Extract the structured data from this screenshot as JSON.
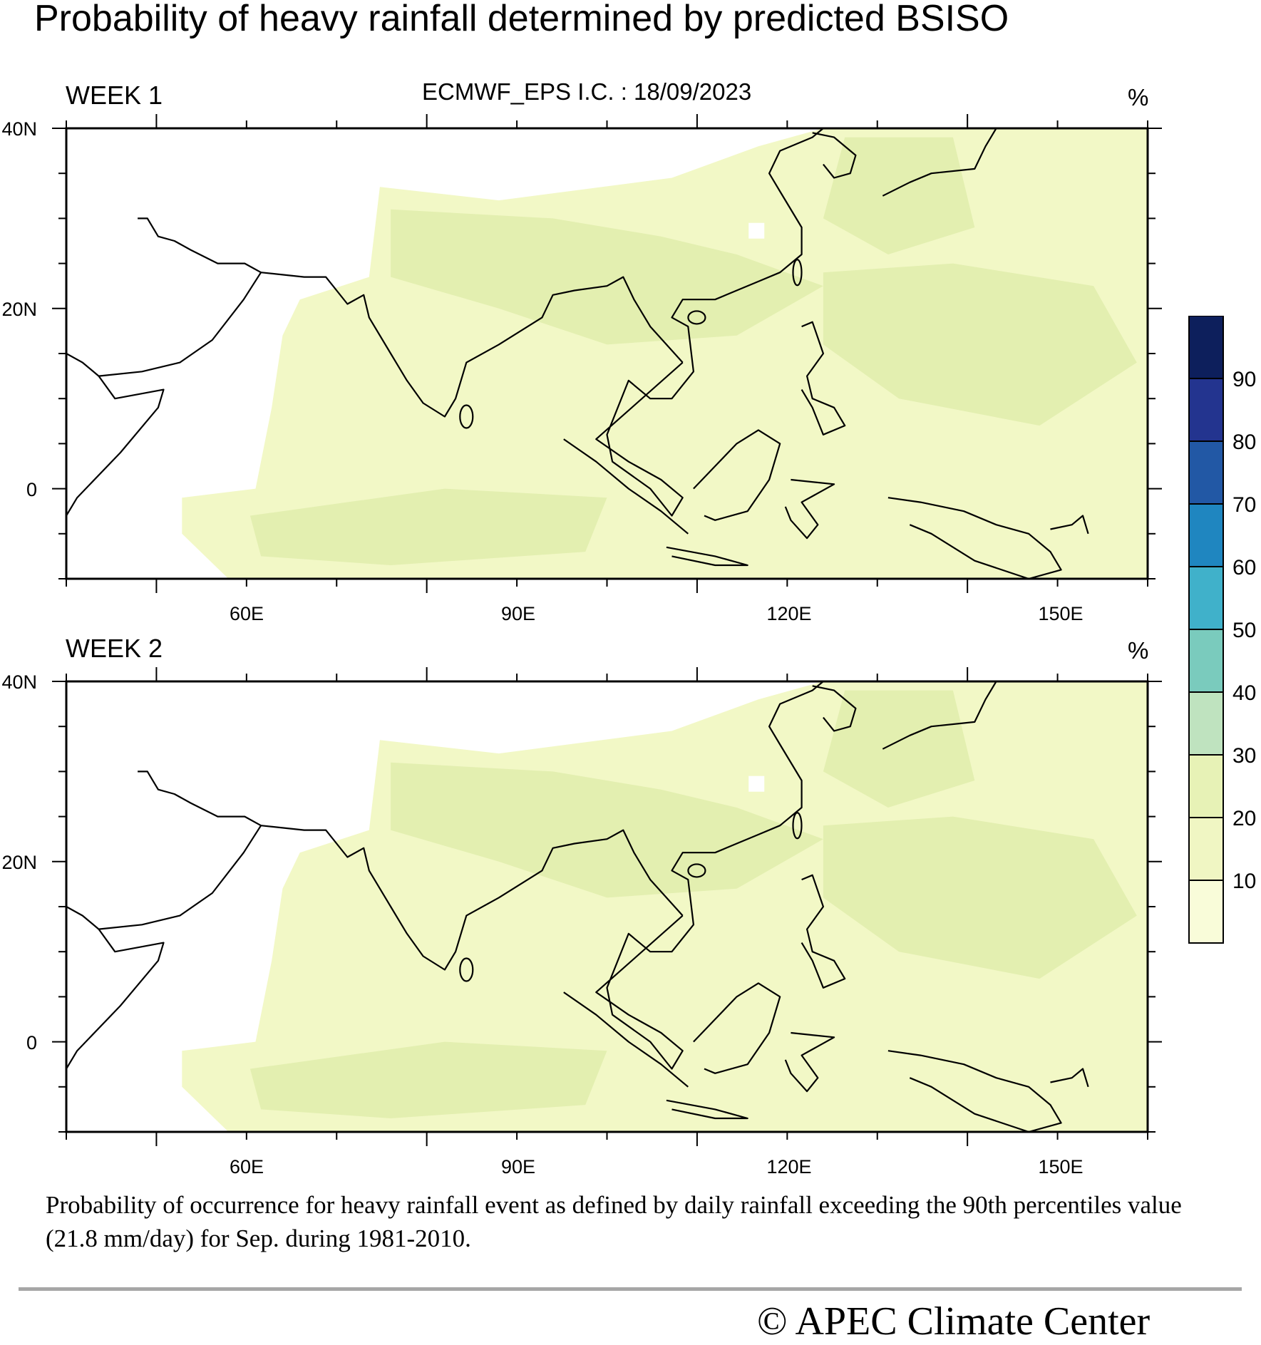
{
  "title": "Probability of heavy rainfall determined by predicted BSISO",
  "subtitle": "ECMWF_EPS  I.C. : 18/09/2023",
  "panels": [
    {
      "label": "WEEK 1",
      "unit": "%"
    },
    {
      "label": "WEEK 2",
      "unit": "%"
    }
  ],
  "axes": {
    "x_ticks": [
      "60E",
      "90E",
      "120E",
      "150E"
    ],
    "y_ticks": [
      "40N",
      "20N",
      "0"
    ]
  },
  "colorbar": {
    "labels": [
      "90",
      "80",
      "70",
      "60",
      "50",
      "40",
      "30",
      "20",
      "10"
    ],
    "colors": [
      "#0d1f5c",
      "#23348f",
      "#2258a5",
      "#1f86c0",
      "#40b1ca",
      "#7acbbd",
      "#bfe3bf",
      "#e7f2b6",
      "#f0f6c3",
      "#f9fcd9"
    ]
  },
  "caption": "Probability of occurrence for heavy rainfall event as defined by daily rainfall exceeding the 90th percentiles value (21.8 mm/day) for Sep. during 1981-2010.",
  "footer": "© APEC Climate Center"
}
